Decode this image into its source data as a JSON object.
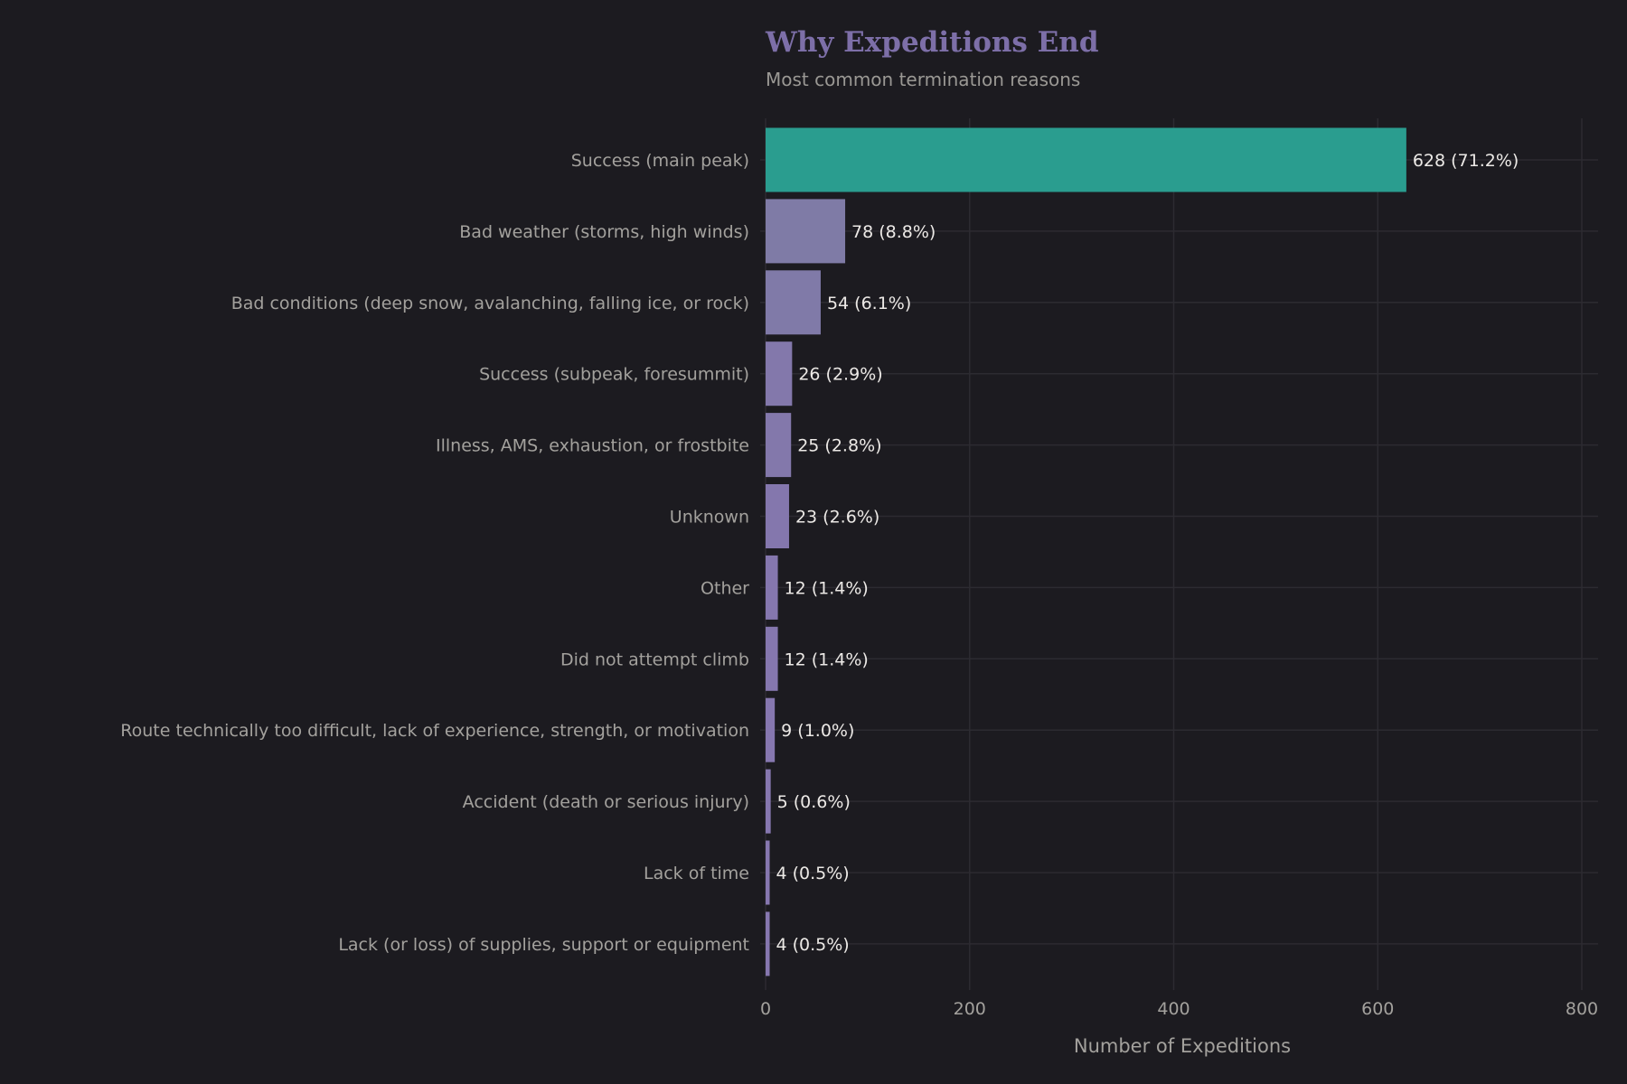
{
  "chart_data": {
    "type": "bar",
    "orientation": "horizontal",
    "title": "Why Expeditions End",
    "subtitle": "Most common termination reasons",
    "xlabel": "Number of Expeditions",
    "ylabel": "",
    "xlim": [
      0,
      815
    ],
    "xticks": [
      0,
      200,
      400,
      600,
      800
    ],
    "grid": true,
    "categories": [
      "Success (main peak)",
      "Bad weather (storms, high winds)",
      "Bad conditions (deep snow, avalanching, falling ice, or rock)",
      "Success (subpeak, foresummit)",
      "Illness, AMS, exhaustion, or frostbite",
      "Unknown",
      "Other",
      "Did not attempt climb",
      "Route technically too difficult, lack of experience, strength, or motivation",
      "Accident (death or serious injury)",
      "Lack of time",
      "Lack (or loss) of supplies, support or equipment"
    ],
    "values": [
      628,
      78,
      54,
      26,
      25,
      23,
      12,
      12,
      9,
      5,
      4,
      4
    ],
    "labels": [
      "628 (71.2%)",
      "78 (8.8%)",
      "54 (6.1%)",
      "26 (2.9%)",
      "25 (2.8%)",
      "23 (2.6%)",
      "12 (1.4%)",
      "12 (1.4%)",
      "9 (1.0%)",
      "5 (0.6%)",
      "4 (0.5%)",
      "4 (0.5%)"
    ],
    "colors": [
      "#2a9d8f",
      "#7f7ba6",
      "#807aa8",
      "#8378ab",
      "#8378ab",
      "#8477ad",
      "#8577ae",
      "#8577ae",
      "#8677af",
      "#8677af",
      "#8677af",
      "#8677af"
    ]
  }
}
